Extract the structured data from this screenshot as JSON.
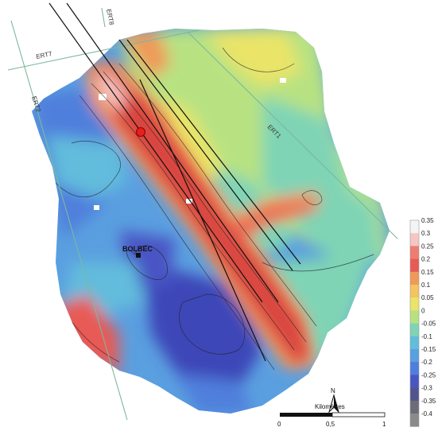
{
  "map": {
    "profiles": [
      {
        "id": "ert7",
        "label": "ERT7"
      },
      {
        "id": "ert8",
        "label": "ERT8"
      },
      {
        "id": "ert2",
        "label": "ERT2"
      },
      {
        "id": "ert1",
        "label": "ERT1"
      }
    ],
    "city": {
      "label": "BOLBEC"
    },
    "north_arrow": {
      "label": "N"
    },
    "scale_bar": {
      "title": "Kilomètres",
      "ticks": [
        "0",
        "0,5",
        "1"
      ]
    }
  },
  "legend": {
    "ticks": [
      "0.35",
      "0.3",
      "0.25",
      "0.2",
      "0.15",
      "0.1",
      "0.05",
      "0",
      "-0.05",
      "-0.1",
      "-0.15",
      "-0.2",
      "-0.25",
      "-0.3",
      "-0.35",
      "-0.4"
    ],
    "colors": [
      "#f4f4f4",
      "#f6c6c2",
      "#ee7c72",
      "#e85a54",
      "#ef9a5a",
      "#f3c460",
      "#eae468",
      "#b8e282",
      "#7fd4b6",
      "#62bcdc",
      "#5a9fe0",
      "#4f7fdc",
      "#4a55c4",
      "#51548c",
      "#6c6c78",
      "#8a8a8a"
    ]
  },
  "colors": {
    "deep_blue": "#3d46b8",
    "blue": "#4f7fdc",
    "light_blue": "#62bcdc",
    "cyan": "#7fd4b6",
    "green": "#b8e282",
    "yellow": "#eae468",
    "orange": "#ef9a5a",
    "red": "#e85a54",
    "dark_red": "#d9443f",
    "line": "#111111",
    "profile_line": "#7cb89c"
  }
}
